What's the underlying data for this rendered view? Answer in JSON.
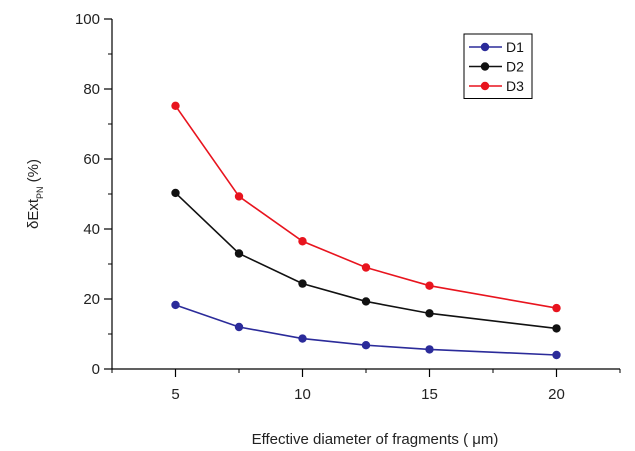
{
  "chart_data": {
    "type": "line",
    "xlabel": "Effective diameter of fragments (  μm)",
    "ylabel_main": "δExt",
    "ylabel_sub": "PN",
    "ylabel_tail": " (%)",
    "xlim": [
      2.5,
      22.5
    ],
    "ylim": [
      0,
      100
    ],
    "xticks": [
      5,
      10,
      15,
      20
    ],
    "yticks": [
      0,
      20,
      40,
      60,
      80,
      100
    ],
    "x": [
      5,
      7.5,
      10,
      12.5,
      15,
      20
    ],
    "series": [
      {
        "name": "D1",
        "color": "#2b2b9a",
        "values": [
          18.3,
          12.0,
          8.7,
          6.8,
          5.6,
          4.0
        ]
      },
      {
        "name": "D2",
        "color": "#111111",
        "values": [
          50.3,
          33.0,
          24.4,
          19.3,
          15.9,
          11.6
        ]
      },
      {
        "name": "D3",
        "color": "#e8141e",
        "values": [
          75.2,
          49.3,
          36.5,
          29.0,
          23.8,
          17.4
        ]
      }
    ],
    "legend_position": "top-right",
    "grid": false
  }
}
